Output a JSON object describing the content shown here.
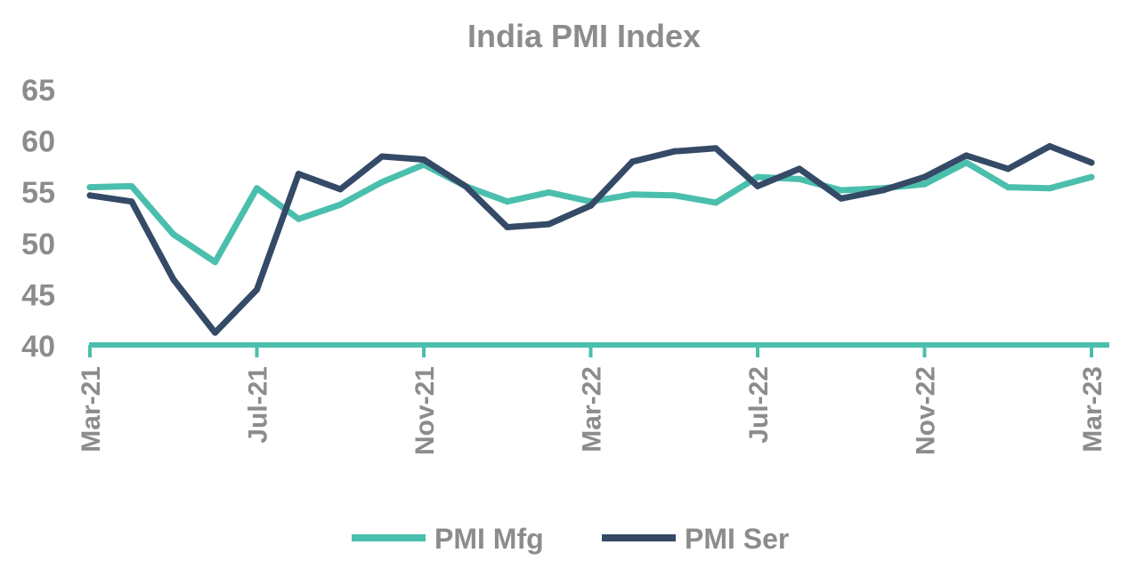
{
  "chart_data": {
    "type": "line",
    "title": "India PMI Index",
    "xlabel": "",
    "ylabel": "",
    "ylim": [
      40,
      65
    ],
    "yticks": [
      "40",
      "45",
      "50",
      "55",
      "60",
      "65"
    ],
    "x_tick_labels": [
      "Mar-21",
      "Jul-21",
      "Nov-21",
      "Mar-22",
      "Jul-22",
      "Nov-22",
      "Mar-23"
    ],
    "categories": [
      "Mar-21",
      "Apr-21",
      "May-21",
      "Jun-21",
      "Jul-21",
      "Aug-21",
      "Sep-21",
      "Oct-21",
      "Nov-21",
      "Dec-21",
      "Jan-22",
      "Feb-22",
      "Mar-22",
      "Apr-22",
      "May-22",
      "Jun-22",
      "Jul-22",
      "Aug-22",
      "Sep-22",
      "Oct-22",
      "Nov-22",
      "Dec-22",
      "Jan-23",
      "Feb-23",
      "Mar-23"
    ],
    "series": [
      {
        "name": "PMI Mfg",
        "color": "#4bbfad",
        "values": [
          55.4,
          55.5,
          50.8,
          48.1,
          55.3,
          52.3,
          53.7,
          55.9,
          57.6,
          55.5,
          54.0,
          54.9,
          54.0,
          54.7,
          54.6,
          53.9,
          56.4,
          56.2,
          55.1,
          55.3,
          55.7,
          57.8,
          55.4,
          55.3,
          56.4
        ]
      },
      {
        "name": "PMI Ser",
        "color": "#344a66",
        "values": [
          54.6,
          54.0,
          46.4,
          41.2,
          45.4,
          56.7,
          55.2,
          58.4,
          58.1,
          55.5,
          51.5,
          51.8,
          53.6,
          57.9,
          58.9,
          59.2,
          55.5,
          57.2,
          54.3,
          55.1,
          56.4,
          58.5,
          57.2,
          59.4,
          57.8
        ]
      }
    ],
    "grid": false,
    "legend_position": "bottom"
  }
}
